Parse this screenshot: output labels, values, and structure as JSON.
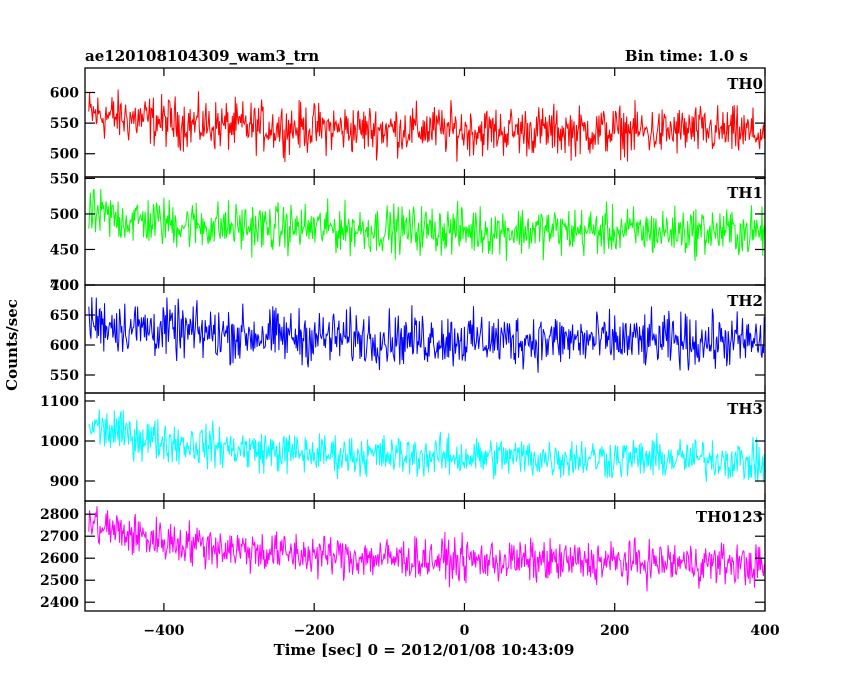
{
  "header": {
    "title": "ae120108104309_wam3_trn",
    "bin_time": "Bin time: 1.0 s"
  },
  "chart_data": {
    "type": "line",
    "xlabel": "Time [sec] 0 = 2012/01/08 10:43:09",
    "ylabel": "Counts/sec",
    "xlim": [
      -505,
      400
    ],
    "x_ticks": [
      -400,
      -200,
      0,
      200,
      400
    ],
    "panels": [
      {
        "name": "TH0",
        "color": "#ff0000",
        "ylim": [
          462,
          640
        ],
        "y_ticks": [
          500,
          550,
          600
        ],
        "x": [
          -500,
          -450,
          -400,
          -350,
          -300,
          -250,
          -200,
          -150,
          -100,
          -50,
          0,
          50,
          100,
          150,
          200,
          250,
          300,
          350,
          400
        ],
        "mean": [
          565,
          558,
          553,
          547,
          545,
          543,
          542,
          540,
          540,
          540,
          538,
          537,
          538,
          536,
          538,
          535,
          538,
          536,
          532
        ],
        "spread": [
          45,
          45,
          45,
          45,
          44,
          44,
          44,
          44,
          44,
          44,
          44,
          44,
          44,
          44,
          44,
          44,
          44,
          44,
          44
        ]
      },
      {
        "name": "TH1",
        "color": "#00ff00",
        "ylim": [
          400,
          552
        ],
        "y_ticks": [
          400,
          450,
          500,
          550
        ],
        "x": [
          -500,
          -450,
          -400,
          -350,
          -300,
          -250,
          -200,
          -150,
          -100,
          -50,
          0,
          50,
          100,
          150,
          200,
          250,
          300,
          350,
          400
        ],
        "mean": [
          500,
          492,
          488,
          484,
          482,
          480,
          480,
          479,
          478,
          478,
          477,
          476,
          477,
          476,
          476,
          475,
          476,
          475,
          474
        ],
        "spread": [
          38,
          38,
          38,
          38,
          38,
          37,
          37,
          37,
          37,
          37,
          37,
          37,
          37,
          37,
          37,
          37,
          37,
          37,
          37
        ]
      },
      {
        "name": "TH2",
        "color": "#0000ff",
        "ylim": [
          520,
          700
        ],
        "y_ticks": [
          550,
          600,
          650,
          700
        ],
        "x": [
          -500,
          -450,
          -400,
          -350,
          -300,
          -250,
          -200,
          -150,
          -100,
          -50,
          0,
          50,
          100,
          150,
          200,
          250,
          300,
          350,
          400
        ],
        "mean": [
          640,
          630,
          625,
          620,
          617,
          615,
          613,
          612,
          611,
          610,
          609,
          609,
          608,
          608,
          607,
          607,
          606,
          606,
          605
        ],
        "spread": [
          50,
          50,
          50,
          50,
          49,
          49,
          49,
          49,
          49,
          49,
          49,
          49,
          49,
          49,
          49,
          49,
          49,
          49,
          49
        ]
      },
      {
        "name": "TH3",
        "color": "#00ffff",
        "ylim": [
          850,
          1120
        ],
        "y_ticks": [
          900,
          1000,
          1100
        ],
        "x": [
          -500,
          -450,
          -400,
          -350,
          -300,
          -250,
          -200,
          -150,
          -100,
          -50,
          0,
          50,
          100,
          150,
          200,
          250,
          300,
          350,
          400
        ],
        "mean": [
          1040,
          1015,
          1000,
          990,
          980,
          972,
          968,
          965,
          963,
          962,
          960,
          960,
          958,
          958,
          957,
          956,
          956,
          955,
          940
        ],
        "spread": [
          60,
          60,
          58,
          58,
          57,
          57,
          56,
          56,
          56,
          56,
          56,
          56,
          56,
          56,
          56,
          56,
          56,
          56,
          56
        ]
      },
      {
        "name": "TH0123",
        "color": "#ff00ff",
        "ylim": [
          2360,
          2860
        ],
        "y_ticks": [
          2400,
          2500,
          2600,
          2700,
          2800
        ],
        "x": [
          -500,
          -450,
          -400,
          -350,
          -300,
          -250,
          -200,
          -150,
          -100,
          -50,
          0,
          50,
          100,
          150,
          200,
          250,
          300,
          350,
          400
        ],
        "mean": [
          2760,
          2710,
          2680,
          2660,
          2640,
          2625,
          2615,
          2605,
          2600,
          2595,
          2590,
          2588,
          2585,
          2583,
          2582,
          2580,
          2578,
          2577,
          2560
        ],
        "spread": [
          110,
          110,
          108,
          108,
          106,
          106,
          105,
          105,
          105,
          105,
          105,
          105,
          105,
          105,
          105,
          105,
          105,
          105,
          105
        ]
      }
    ]
  }
}
